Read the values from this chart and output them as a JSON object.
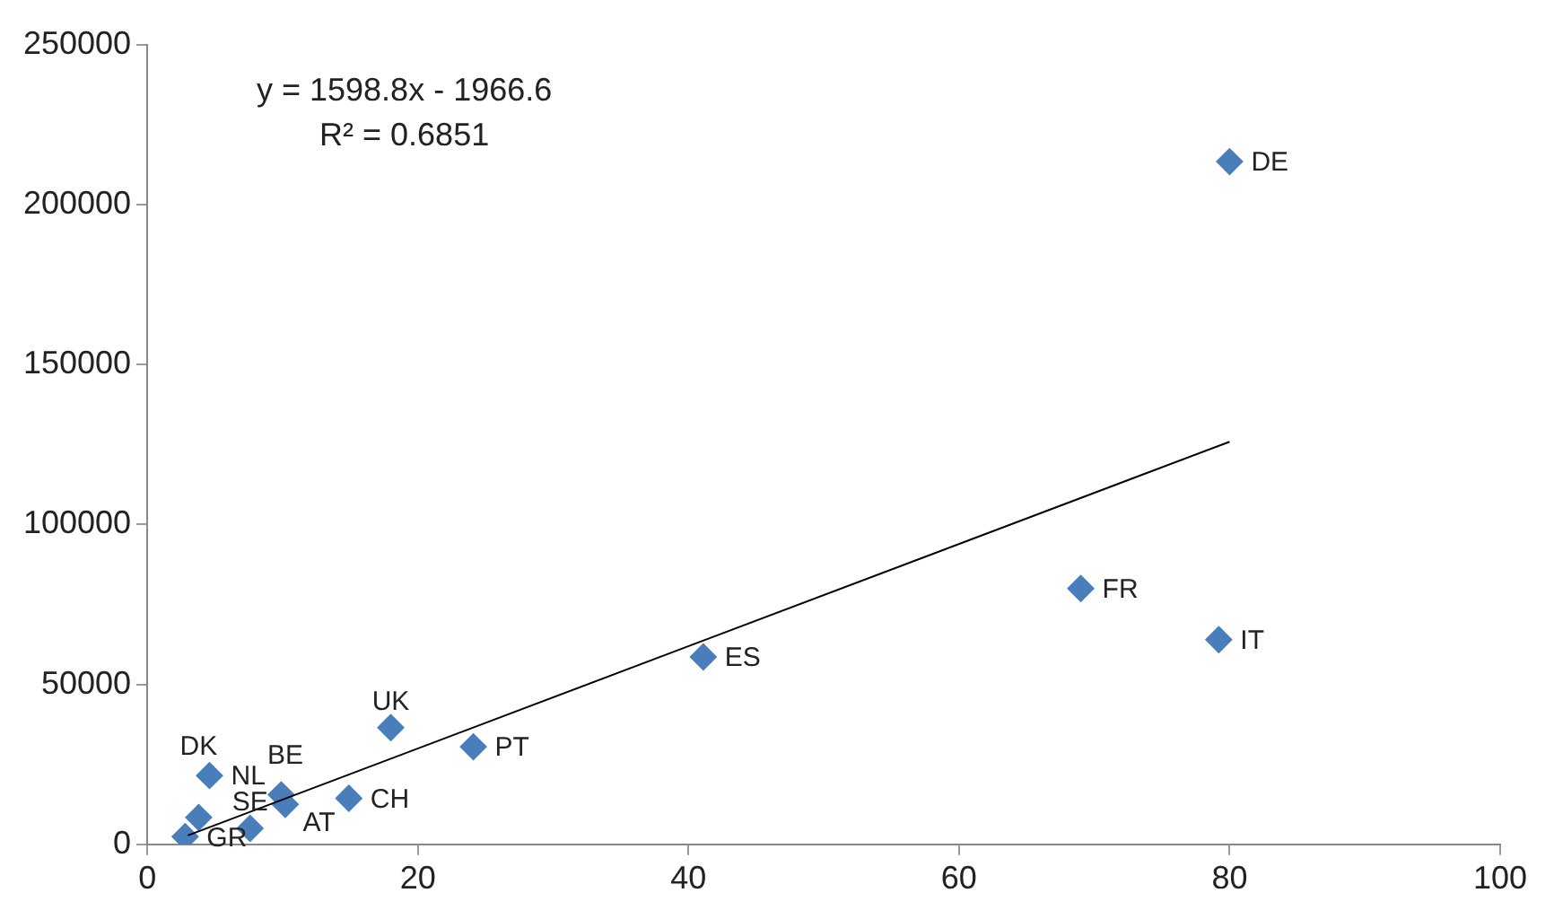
{
  "chart_data": {
    "type": "scatter",
    "xlim": [
      0,
      100
    ],
    "xticks": [
      0,
      20,
      40,
      60,
      80,
      100
    ],
    "ylim": [
      0,
      250000
    ],
    "yticks": [
      0,
      50000,
      100000,
      150000,
      200000,
      250000
    ],
    "grid": false,
    "legend": false,
    "marker": "diamond",
    "series": [
      {
        "color": "#4a7ebb",
        "x": [
          80,
          69,
          79.2,
          41.1,
          18,
          24.1,
          4.6,
          9.9,
          10.2,
          14.9,
          3.8,
          7.6,
          2.8
        ],
        "values": [
          213500,
          80000,
          64000,
          58600,
          36500,
          30500,
          21500,
          15500,
          12500,
          14400,
          8400,
          5000,
          2400
        ]
      },
      {
        "type": "line",
        "color": "#000000",
        "x": [
          3,
          80
        ],
        "values": [
          2800,
          125900
        ],
        "marker": "none"
      }
    ],
    "annotations": [
      "y = 1598.8x - 1966.6",
      "R² = 0.6851",
      {
        "text": "DE",
        "x": 80,
        "y": 213500
      },
      {
        "text": "FR",
        "x": 69,
        "y": 80000
      },
      {
        "text": "IT",
        "x": 79.2,
        "y": 64000
      },
      {
        "text": "ES",
        "x": 41.1,
        "y": 58600
      },
      {
        "text": "UK",
        "x": 18,
        "y": 36500
      },
      {
        "text": "PT",
        "x": 24.1,
        "y": 30500
      },
      {
        "text": "NL",
        "x": 4.6,
        "y": 21500
      },
      {
        "text": "AT",
        "x": 9.9,
        "y": 15500
      },
      {
        "text": "BE",
        "x": 10.2,
        "y": 12500
      },
      {
        "text": "CH",
        "x": 14.9,
        "y": 14400
      },
      {
        "text": "DK",
        "x": 3.8,
        "y": 8400
      },
      {
        "text": "SE",
        "x": 7.6,
        "y": 5000
      },
      {
        "text": "GR",
        "x": 2.8,
        "y": 2400
      }
    ]
  }
}
